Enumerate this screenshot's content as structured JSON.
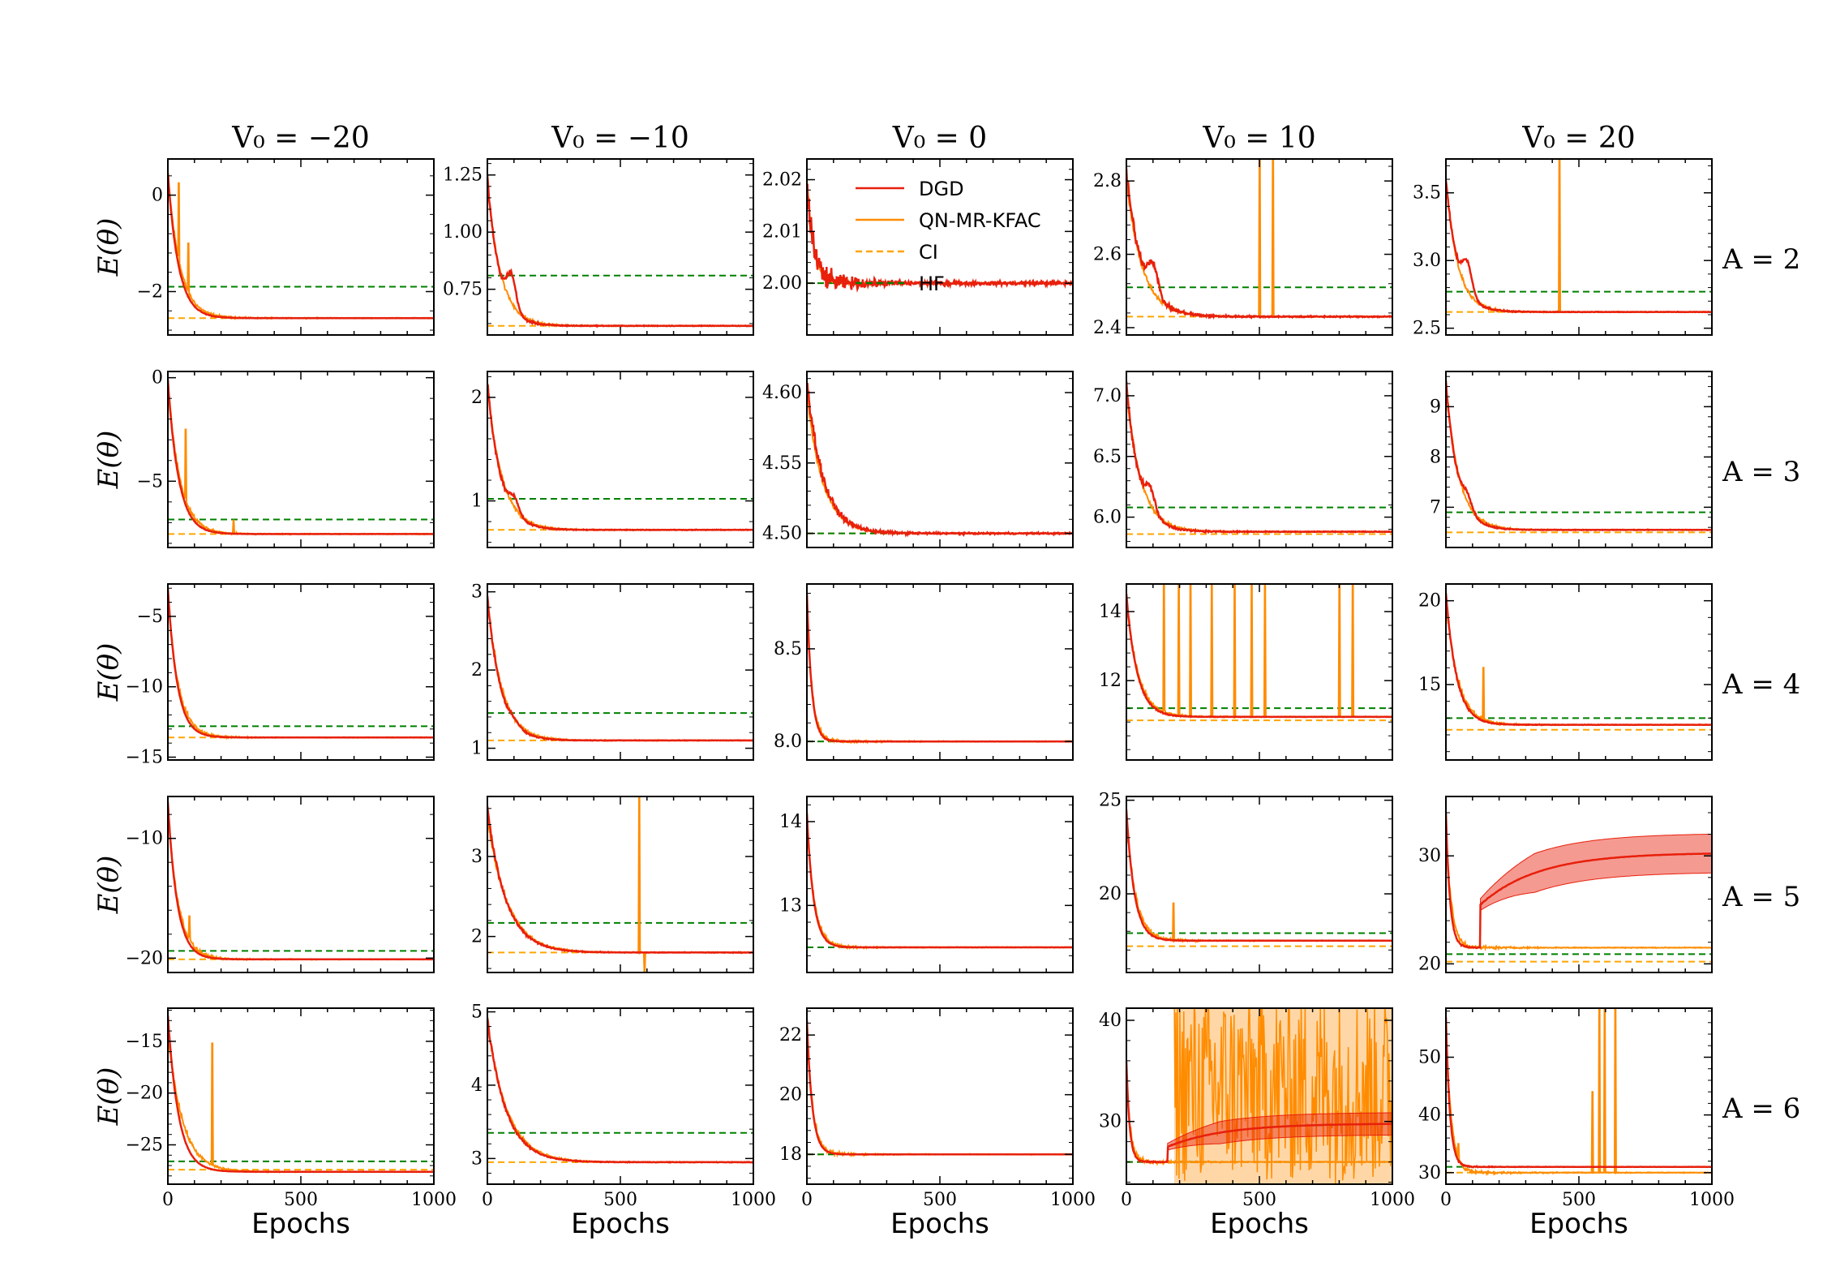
{
  "chart_data": {
    "type": "line",
    "title": "",
    "xlabel": "Epochs",
    "ylabel": "E(θ)",
    "column_titles": [
      "V₀ = −20",
      "V₀ = −10",
      "V₀ = 0",
      "V₀ = 10",
      "V₀ = 20"
    ],
    "row_labels": [
      "A = 2",
      "A = 3",
      "A = 4",
      "A = 5",
      "A = 6"
    ],
    "xlim": [
      0,
      1000
    ],
    "xticks": [
      0,
      500,
      1000
    ],
    "legend": {
      "placement": "top-right",
      "entries": [
        {
          "label": "DGD",
          "color": "#e8200c",
          "style": "solid"
        },
        {
          "label": "QN-MR-KFAC",
          "color": "#ff8c00",
          "style": "solid"
        },
        {
          "label": "CI",
          "color": "#ffa500",
          "style": "dashed"
        },
        {
          "label": "HF",
          "color": "#008000",
          "style": "dashed"
        }
      ]
    },
    "colors": {
      "dgd": "#e8200c",
      "kfac": "#ff8c00",
      "ci": "#ffa500",
      "hf": "#008000"
    },
    "panels": [
      {
        "row": 0,
        "col": 0,
        "ylim": [
          -2.9,
          0.75
        ],
        "yticks": [
          0,
          -2
        ],
        "ytick_labels": [
          "0",
          "−2"
        ],
        "dgd": {
          "start": 0.45,
          "final": -2.55,
          "tau": 40,
          "noise": 0.02
        },
        "kfac": {
          "start": 0.45,
          "final": -2.55,
          "tau": 45,
          "spikes": [
            {
              "x": 40,
              "y": 0.25
            },
            {
              "x": 75,
              "y": -1.0
            }
          ]
        },
        "ci": -2.55,
        "hf": -1.9
      },
      {
        "row": 0,
        "col": 1,
        "ylim": [
          0.55,
          1.32
        ],
        "yticks": [
          1.25,
          1.0,
          0.75
        ],
        "ytick_labels": [
          "1.25",
          "1.00",
          "0.75"
        ],
        "dgd": {
          "start": 1.24,
          "final": 0.59,
          "tau": 45,
          "noise": 0.015,
          "hump": {
            "x": 90,
            "y": 0.82
          }
        },
        "kfac": {
          "start": 1.22,
          "final": 0.59,
          "tau": 50,
          "spikes": []
        },
        "ci": 0.59,
        "hf": 0.81
      },
      {
        "row": 0,
        "col": 2,
        "ylim": [
          1.99,
          2.024
        ],
        "yticks": [
          2.02,
          2.01,
          2.0
        ],
        "ytick_labels": [
          "2.02",
          "2.01",
          "2.00"
        ],
        "dgd": {
          "start": 2.02,
          "final": 2.0,
          "tau": 25,
          "noise": 0.004
        },
        "kfac": {
          "start": 2.02,
          "final": 2.0,
          "tau": 25,
          "spikes": []
        },
        "ci": 2.0,
        "hf": 2.0
      },
      {
        "row": 0,
        "col": 3,
        "ylim": [
          2.38,
          2.86
        ],
        "yticks": [
          2.8,
          2.6,
          2.4
        ],
        "ytick_labels": [
          "2.8",
          "2.6",
          "2.4"
        ],
        "dgd": {
          "start": 2.82,
          "final": 2.43,
          "tau": 60,
          "noise": 0.02,
          "hump": {
            "x": 100,
            "y": 2.58
          }
        },
        "kfac": {
          "start": 2.8,
          "final": 2.43,
          "tau": 60,
          "spikes": [
            {
              "x": 500,
              "y": 2.86
            },
            {
              "x": 550,
              "y": 2.86
            }
          ]
        },
        "ci": 2.43,
        "hf": 2.51
      },
      {
        "row": 0,
        "col": 4,
        "ylim": [
          2.45,
          3.75
        ],
        "yticks": [
          3.5,
          3.0,
          2.5
        ],
        "ytick_labels": [
          "3.5",
          "3.0",
          "2.5"
        ],
        "dgd": {
          "start": 3.6,
          "final": 2.62,
          "tau": 45,
          "noise": 0.02,
          "hump": {
            "x": 80,
            "y": 3.0
          }
        },
        "kfac": {
          "start": 3.6,
          "final": 2.62,
          "tau": 45,
          "spikes": [
            {
              "x": 425,
              "y": 3.75
            }
          ]
        },
        "ci": 2.62,
        "hf": 2.77
      },
      {
        "row": 1,
        "col": 0,
        "ylim": [
          -8.2,
          0.3
        ],
        "yticks": [
          0,
          -5
        ],
        "ytick_labels": [
          "0",
          "−5"
        ],
        "dgd": {
          "start": -0.1,
          "final": -7.55,
          "tau": 40,
          "noise": 0.05
        },
        "kfac": {
          "start": -0.2,
          "final": -7.55,
          "tau": 45,
          "spikes": [
            {
              "x": 65,
              "y": -2.5
            },
            {
              "x": 245,
              "y": -6.9
            }
          ]
        },
        "ci": -7.55,
        "hf": -6.85
      },
      {
        "row": 1,
        "col": 1,
        "ylim": [
          0.55,
          2.25
        ],
        "yticks": [
          2,
          1
        ],
        "ytick_labels": [
          "2",
          "1"
        ],
        "dgd": {
          "start": 2.15,
          "final": 0.72,
          "tau": 50,
          "noise": 0.03,
          "hump": {
            "x": 100,
            "y": 1.05
          }
        },
        "kfac": {
          "start": 2.1,
          "final": 0.72,
          "tau": 55,
          "spikes": []
        },
        "ci": 0.72,
        "hf": 1.02
      },
      {
        "row": 1,
        "col": 2,
        "ylim": [
          4.49,
          4.615
        ],
        "yticks": [
          4.6,
          4.55,
          4.5
        ],
        "ytick_labels": [
          "4.60",
          "4.55",
          "4.50"
        ],
        "dgd": {
          "start": 4.61,
          "final": 4.5,
          "tau": 60,
          "noise": 0.006
        },
        "kfac": {
          "start": 4.6,
          "final": 4.5,
          "tau": 60,
          "spikes": []
        },
        "ci": 4.5,
        "hf": 4.5
      },
      {
        "row": 1,
        "col": 3,
        "ylim": [
          5.75,
          7.2
        ],
        "yticks": [
          7.0,
          6.5,
          6.0
        ],
        "ytick_labels": [
          "7.0",
          "6.5",
          "6.0"
        ],
        "dgd": {
          "start": 7.1,
          "final": 5.88,
          "tau": 50,
          "noise": 0.04,
          "hump": {
            "x": 90,
            "y": 6.25
          }
        },
        "kfac": {
          "start": 7.05,
          "final": 5.88,
          "tau": 55,
          "spikes": []
        },
        "ci": 5.86,
        "hf": 6.08
      },
      {
        "row": 1,
        "col": 4,
        "ylim": [
          6.2,
          9.7
        ],
        "yticks": [
          9,
          8,
          7
        ],
        "ytick_labels": [
          "9",
          "8",
          "7"
        ],
        "dgd": {
          "start": 9.5,
          "final": 6.55,
          "tau": 45,
          "noise": 0.05,
          "hump": {
            "x": 80,
            "y": 7.3
          }
        },
        "kfac": {
          "start": 9.4,
          "final": 6.55,
          "tau": 50,
          "spikes": []
        },
        "ci": 6.5,
        "hf": 6.9
      },
      {
        "row": 2,
        "col": 0,
        "ylim": [
          -15.2,
          -2.7
        ],
        "yticks": [
          -5,
          -10,
          -15
        ],
        "ytick_labels": [
          "−5",
          "−10",
          "−15"
        ],
        "dgd": {
          "start": -3.0,
          "final": -13.6,
          "tau": 35,
          "noise": 0.05
        },
        "kfac": {
          "start": -3.5,
          "final": -13.6,
          "tau": 40,
          "spikes": []
        },
        "ci": -13.6,
        "hf": -12.8
      },
      {
        "row": 2,
        "col": 1,
        "ylim": [
          0.85,
          3.1
        ],
        "yticks": [
          3,
          2,
          1
        ],
        "ytick_labels": [
          "3",
          "2",
          "1"
        ],
        "dgd": {
          "start": 2.95,
          "final": 1.1,
          "tau": 50,
          "noise": 0.03,
          "hump": {
            "x": 100,
            "y": 1.4
          }
        },
        "kfac": {
          "start": 2.9,
          "final": 1.1,
          "tau": 55,
          "spikes": []
        },
        "ci": 1.1,
        "hf": 1.45
      },
      {
        "row": 2,
        "col": 2,
        "ylim": [
          7.9,
          8.85
        ],
        "yticks": [
          8.5,
          8.0
        ],
        "ytick_labels": [
          "8.5",
          "8.0"
        ],
        "dgd": {
          "start": 8.8,
          "final": 8.0,
          "tau": 18,
          "noise": 0.005
        },
        "kfac": {
          "start": 8.75,
          "final": 8.0,
          "tau": 20,
          "spikes": []
        },
        "ci": 8.0,
        "hf": 8.0
      },
      {
        "row": 2,
        "col": 3,
        "ylim": [
          9.7,
          14.8
        ],
        "yticks": [
          14,
          12
        ],
        "ytick_labels": [
          "14",
          "12"
        ],
        "dgd": {
          "start": 14.5,
          "final": 10.95,
          "tau": 40,
          "noise": 0.05
        },
        "kfac": {
          "start": 14.3,
          "final": 10.95,
          "tau": 45,
          "spikes": [
            {
              "x": 140,
              "y": 14.8
            },
            {
              "x": 195,
              "y": 14.8
            },
            {
              "x": 240,
              "y": 14.8
            },
            {
              "x": 320,
              "y": 14.8
            },
            {
              "x": 405,
              "y": 14.8
            },
            {
              "x": 470,
              "y": 14.8
            },
            {
              "x": 520,
              "y": 14.8
            },
            {
              "x": 800,
              "y": 14.8
            },
            {
              "x": 850,
              "y": 14.8
            }
          ]
        },
        "ci": 10.85,
        "hf": 11.2
      },
      {
        "row": 2,
        "col": 4,
        "ylim": [
          10.5,
          21
        ],
        "yticks": [
          20,
          15
        ],
        "ytick_labels": [
          "20",
          "15"
        ],
        "dgd": {
          "start": 20.5,
          "final": 12.6,
          "tau": 40,
          "noise": 0.1
        },
        "kfac": {
          "start": 20.0,
          "final": 12.6,
          "tau": 45,
          "spikes": [
            {
              "x": 140,
              "y": 16.0
            }
          ]
        },
        "ci": 12.3,
        "hf": 13.0
      },
      {
        "row": 3,
        "col": 0,
        "ylim": [
          -21.2,
          -6.5
        ],
        "yticks": [
          -10,
          -20
        ],
        "ytick_labels": [
          "−10",
          "−20"
        ],
        "dgd": {
          "start": -7.0,
          "final": -20.1,
          "tau": 35,
          "noise": 0.05
        },
        "kfac": {
          "start": -7.5,
          "final": -20.1,
          "tau": 40,
          "spikes": [
            {
              "x": 80,
              "y": -16.5
            }
          ]
        },
        "ci": -20.1,
        "hf": -19.4
      },
      {
        "row": 3,
        "col": 1,
        "ylim": [
          1.55,
          3.75
        ],
        "yticks": [
          3,
          2
        ],
        "ytick_labels": [
          "3",
          "2"
        ],
        "dgd": {
          "start": 3.6,
          "final": 1.8,
          "tau": 70,
          "noise": 0.04
        },
        "kfac": {
          "start": 3.5,
          "final": 1.8,
          "tau": 75,
          "spikes": [
            {
              "x": 570,
              "y": 3.75
            },
            {
              "x": 590,
              "y": 1.55
            }
          ]
        },
        "ci": 1.8,
        "hf": 2.17
      },
      {
        "row": 3,
        "col": 2,
        "ylim": [
          12.2,
          14.3
        ],
        "yticks": [
          14,
          13
        ],
        "ytick_labels": [
          "14",
          "13"
        ],
        "dgd": {
          "start": 14.1,
          "final": 12.5,
          "tau": 25,
          "noise": 0.01
        },
        "kfac": {
          "start": 14.0,
          "final": 12.5,
          "tau": 28,
          "spikes": []
        },
        "ci": 12.5,
        "hf": 12.5
      },
      {
        "row": 3,
        "col": 3,
        "ylim": [
          15.8,
          25.2
        ],
        "yticks": [
          25,
          20
        ],
        "ytick_labels": [
          "25",
          "20"
        ],
        "dgd": {
          "start": 24.5,
          "final": 17.5,
          "tau": 30,
          "noise": 0.05
        },
        "kfac": {
          "start": 24.0,
          "final": 17.5,
          "tau": 35,
          "spikes": [
            {
              "x": 175,
              "y": 19.5
            }
          ]
        },
        "ci": 17.2,
        "hf": 17.9
      },
      {
        "row": 3,
        "col": 4,
        "ylim": [
          19.2,
          35.5
        ],
        "yticks": [
          30,
          20
        ],
        "ytick_labels": [
          "30",
          "20"
        ],
        "dgd": {
          "start": 34.0,
          "final": 21.5,
          "tau": 15,
          "noise": 0.1,
          "drift": {
            "x0": 130,
            "y0": 25.5,
            "y1": 30.3,
            "band": 1.8
          }
        },
        "kfac": {
          "start": 33.0,
          "final": 21.5,
          "tau": 20,
          "spikes": []
        },
        "ci": 20.2,
        "hf": 20.9
      },
      {
        "row": 4,
        "col": 0,
        "ylim": [
          -28.8,
          -11.8
        ],
        "yticks": [
          -15,
          -20,
          -25
        ],
        "ytick_labels": [
          "−15",
          "−20",
          "−25"
        ],
        "dgd": {
          "start": -12.5,
          "final": -27.6,
          "tau": 40,
          "noise": 0.05
        },
        "kfac": {
          "start": -14.0,
          "final": -27.6,
          "tau": 55,
          "spikes": [
            {
              "x": 165,
              "y": -15.2
            }
          ]
        },
        "ci": -27.4,
        "hf": -26.6
      },
      {
        "row": 4,
        "col": 1,
        "ylim": [
          2.65,
          5.05
        ],
        "yticks": [
          5,
          4,
          3
        ],
        "ytick_labels": [
          "5",
          "4",
          "3"
        ],
        "dgd": {
          "start": 4.9,
          "final": 2.95,
          "tau": 70,
          "noise": 0.04
        },
        "kfac": {
          "start": 4.85,
          "final": 2.95,
          "tau": 75,
          "spikes": []
        },
        "ci": 2.95,
        "hf": 3.35
      },
      {
        "row": 4,
        "col": 2,
        "ylim": [
          17.0,
          22.9
        ],
        "yticks": [
          22,
          20,
          18
        ],
        "ytick_labels": [
          "22",
          "20",
          "18"
        ],
        "dgd": {
          "start": 22.5,
          "final": 18.0,
          "tau": 20,
          "noise": 0.01
        },
        "kfac": {
          "start": 22.3,
          "final": 18.0,
          "tau": 22,
          "spikes": []
        },
        "ci": 18.0,
        "hf": 18.0
      },
      {
        "row": 4,
        "col": 3,
        "ylim": [
          23.8,
          41.2
        ],
        "yticks": [
          40,
          30
        ],
        "ytick_labels": [
          "40",
          "30"
        ],
        "dgd": {
          "start": 36.0,
          "final": 26.0,
          "tau": 12,
          "noise": 0.1,
          "drift": {
            "x0": 155,
            "y0": 27.5,
            "y1": 29.8,
            "band": 1.1
          }
        },
        "kfac": {
          "start": 35.0,
          "final": 26.0,
          "tau": 15,
          "spikes": [],
          "chaos": {
            "x0": 180,
            "x1": 1000
          }
        },
        "ci": 26.0,
        "hf": 26.0
      },
      {
        "row": 4,
        "col": 4,
        "ylim": [
          28.0,
          58.5
        ],
        "yticks": [
          50,
          40,
          30
        ],
        "ytick_labels": [
          "50",
          "40",
          "30"
        ],
        "dgd": {
          "start": 57.0,
          "final": 31.0,
          "tau": 15,
          "noise": 0.2
        },
        "kfac": {
          "start": 56.0,
          "final": 30.0,
          "tau": 20,
          "spikes": [
            {
              "x": 45,
              "y": 35.0
            },
            {
              "x": 550,
              "y": 44.0
            },
            {
              "x": 575,
              "y": 58.5
            },
            {
              "x": 595,
              "y": 58.5
            },
            {
              "x": 635,
              "y": 58.5
            }
          ]
        },
        "ci": 30.0,
        "hf": 31.0
      }
    ]
  }
}
